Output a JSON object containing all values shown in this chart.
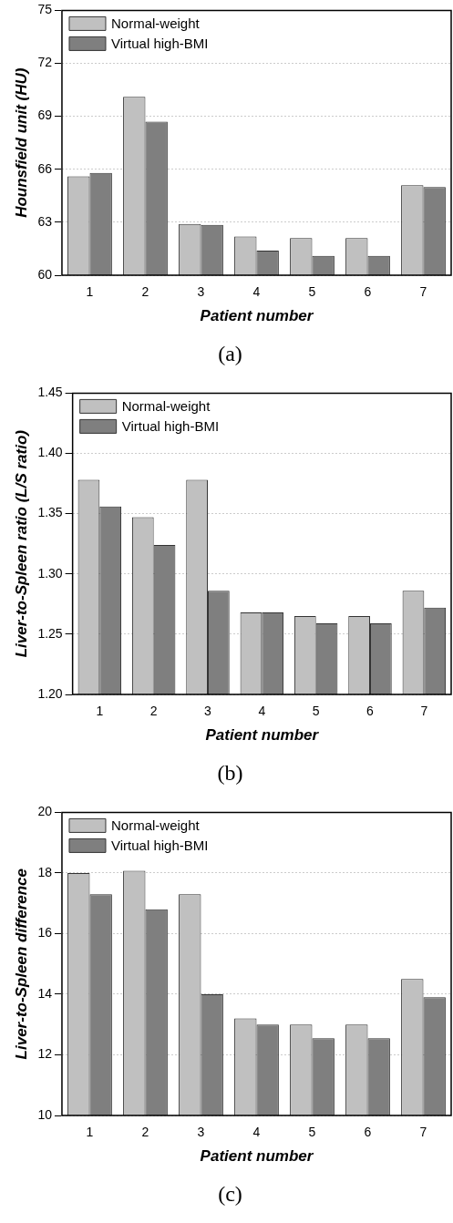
{
  "chart_data": [
    {
      "type": "bar",
      "title": "(a)",
      "xlabel": "Patient number",
      "ylabel": "Hounsfield unit (HU)",
      "categories": [
        "1",
        "2",
        "3",
        "4",
        "5",
        "6",
        "7"
      ],
      "series": [
        {
          "name": "Normal-weight",
          "color": "#c0c0c0",
          "values": [
            65.6,
            70.1,
            62.9,
            62.2,
            62.1,
            62.1,
            65.1
          ]
        },
        {
          "name": "Virtual high-BMI",
          "color": "#7f7f7f",
          "values": [
            65.8,
            68.7,
            62.85,
            61.4,
            61.1,
            61.1,
            65.0
          ]
        }
      ],
      "ylim": [
        60,
        75
      ],
      "yticks": [
        60,
        63,
        66,
        69,
        72,
        75
      ],
      "grid": "y",
      "legend": "top left"
    },
    {
      "type": "bar",
      "title": "(b)",
      "xlabel": "Patient number",
      "ylabel": "Liver-to-Spleen ratio (L/S ratio)",
      "categories": [
        "1",
        "2",
        "3",
        "4",
        "5",
        "6",
        "7"
      ],
      "series": [
        {
          "name": "Normal-weight",
          "color": "#c0c0c0",
          "values": [
            1.378,
            1.347,
            1.378,
            1.268,
            1.265,
            1.265,
            1.286
          ]
        },
        {
          "name": "Virtual high-BMI",
          "color": "#7f7f7f",
          "values": [
            1.356,
            1.324,
            1.286,
            1.268,
            1.259,
            1.259,
            1.272
          ]
        }
      ],
      "ylim": [
        1.2,
        1.45
      ],
      "yticks": [
        {
          "value": 1.2,
          "label": "1.20"
        },
        {
          "value": 1.25,
          "label": "1.25"
        },
        {
          "value": 1.3,
          "label": "1.30"
        },
        {
          "value": 1.35,
          "label": "1.35"
        },
        {
          "value": 1.4,
          "label": "1.40"
        },
        {
          "value": 1.45,
          "label": "1.45"
        }
      ],
      "grid": "y",
      "legend": "top left"
    },
    {
      "type": "bar",
      "title": "(c)",
      "xlabel": "Patient number",
      "ylabel": "Liver-to-Spleen difference",
      "categories": [
        "1",
        "2",
        "3",
        "4",
        "5",
        "6",
        "7"
      ],
      "series": [
        {
          "name": "Normal-weight",
          "color": "#c0c0c0",
          "values": [
            18.0,
            18.07,
            17.3,
            13.2,
            13.0,
            13.0,
            14.5
          ]
        },
        {
          "name": "Virtual high-BMI",
          "color": "#7f7f7f",
          "values": [
            17.3,
            16.8,
            14.0,
            13.0,
            12.55,
            12.55,
            13.9
          ]
        }
      ],
      "ylim": [
        10,
        20
      ],
      "yticks": [
        10,
        12,
        14,
        16,
        18,
        20
      ],
      "grid": "y",
      "legend": "top left"
    }
  ]
}
